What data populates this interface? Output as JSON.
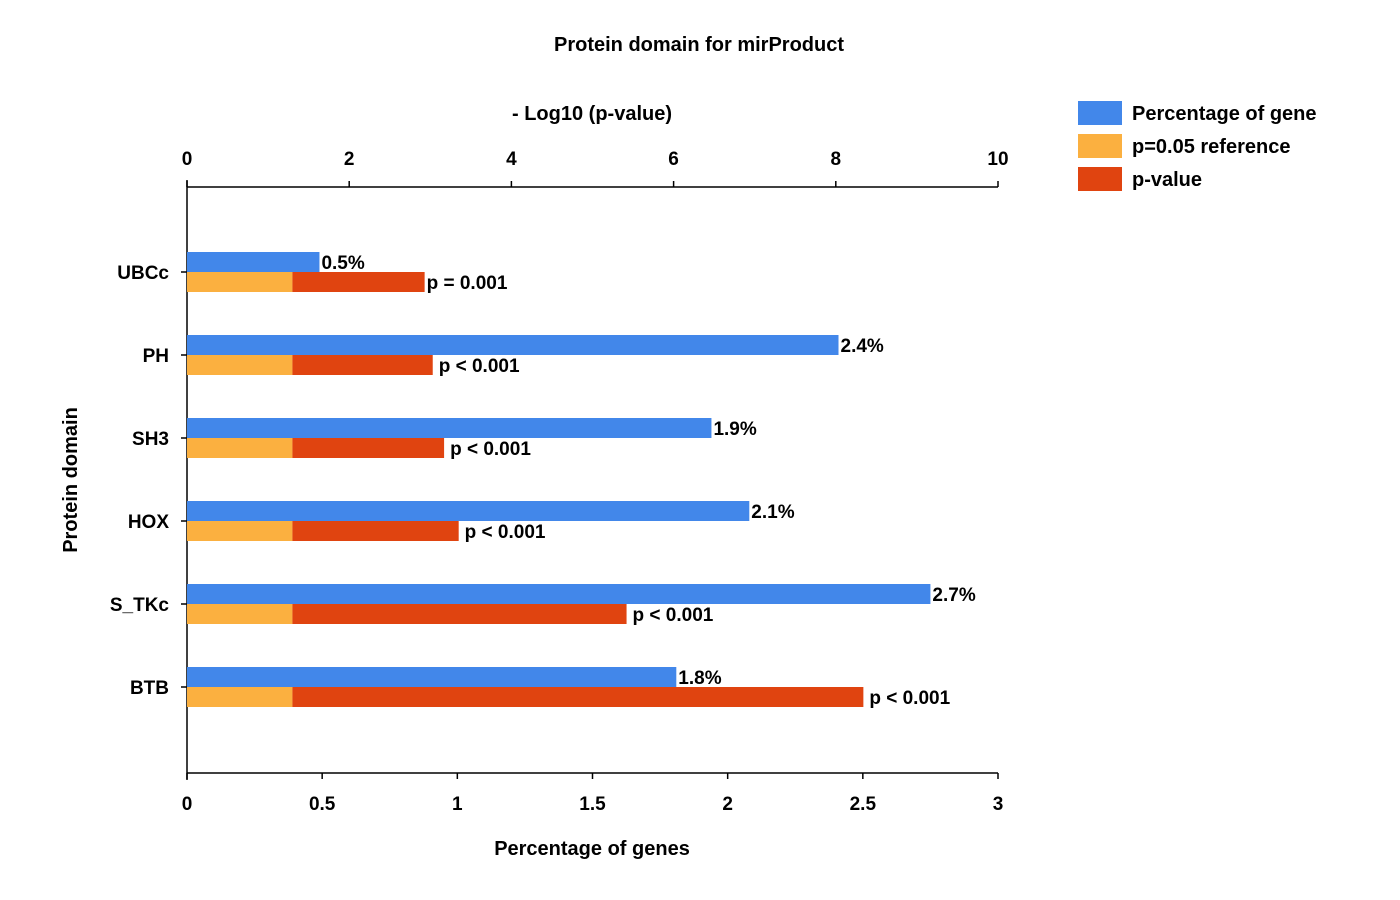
{
  "chart_data": {
    "type": "bar",
    "orientation": "horizontal",
    "title": "Protein domain for mirProduct",
    "ylabel": "Protein domain",
    "xlabel_bottom": "Percentage of genes",
    "xlabel_top": "- Log10 (p-value)",
    "categories": [
      "UBCc",
      "PH",
      "SH3",
      "HOX",
      "S_TKc",
      "BTB"
    ],
    "bottom_axis": {
      "range": [
        0,
        3
      ],
      "ticks": [
        "0",
        "0.5",
        "1",
        "1.5",
        "2",
        "2.5",
        "3"
      ]
    },
    "top_axis": {
      "range": [
        0,
        10
      ],
      "ticks": [
        "0",
        "2",
        "4",
        "6",
        "8",
        "10"
      ]
    },
    "series": [
      {
        "name": "Percentage of gene",
        "axis": "bottom",
        "color": "#4287EA",
        "values": [
          0.49,
          2.41,
          1.94,
          2.08,
          2.75,
          1.81
        ],
        "labels": [
          "0.5%",
          "2.4%",
          "1.9%",
          "2.1%",
          "2.7%",
          "1.8%"
        ]
      },
      {
        "name": "p=0.05 reference",
        "axis": "top",
        "color": "#FBB040",
        "values": [
          1.3,
          1.3,
          1.3,
          1.3,
          1.3,
          1.3
        ]
      },
      {
        "name": "p-value",
        "axis": "top",
        "color": "#E04410",
        "values": [
          2.93,
          3.03,
          3.17,
          3.35,
          5.42,
          8.34
        ],
        "labels": [
          "p = 0.001",
          "p < 0.001",
          "p < 0.001",
          "p < 0.001",
          "p < 0.001",
          "p < 0.001"
        ]
      }
    ],
    "legend": {
      "position": "top-right",
      "items": [
        {
          "label": "Percentage of gene",
          "color": "#4287EA"
        },
        {
          "label": "p=0.05 reference",
          "color": "#FBB040"
        },
        {
          "label": "p-value",
          "color": "#E04410"
        }
      ]
    },
    "grid": false
  }
}
